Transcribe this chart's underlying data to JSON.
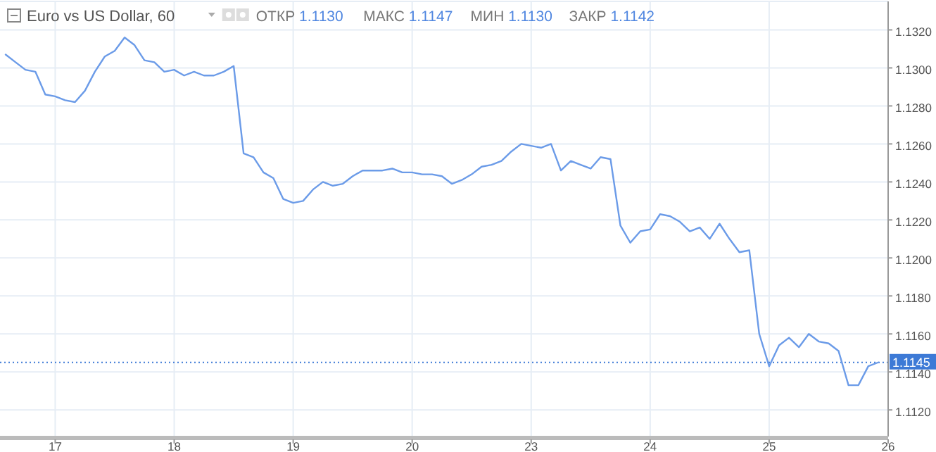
{
  "chart_data": {
    "type": "line",
    "title": "Euro vs US Dollar, 60",
    "annotations": [
      "ОТКР 1.1130",
      "МАКС 1.1147",
      "МИН 1.1130",
      "ЗАКР 1.1142"
    ],
    "categories": [
      null,
      null,
      null,
      null,
      null,
      "17",
      null,
      null,
      null,
      null,
      null,
      null,
      null,
      null,
      null,
      null,
      null,
      "18",
      null,
      null,
      null,
      null,
      null,
      null,
      null,
      null,
      null,
      null,
      null,
      "19",
      null,
      null,
      null,
      null,
      null,
      null,
      null,
      null,
      null,
      null,
      null,
      "20",
      null,
      null,
      null,
      null,
      null,
      null,
      null,
      null,
      null,
      null,
      null,
      "23",
      null,
      null,
      null,
      null,
      null,
      null,
      null,
      null,
      null,
      null,
      null,
      "24",
      null,
      null,
      null,
      null,
      null,
      null,
      null,
      null,
      null,
      null,
      null,
      "25",
      null,
      null,
      null,
      null,
      null,
      null,
      null,
      null,
      null,
      null,
      null,
      "26"
    ],
    "series": [
      {
        "color": "#6b9be8",
        "values": [
          1.1307,
          1.1303,
          1.1299,
          1.1298,
          1.1286,
          1.1285,
          1.1283,
          1.1282,
          1.1288,
          1.1298,
          1.1306,
          1.1309,
          1.1316,
          1.1312,
          1.1304,
          1.1303,
          1.1298,
          1.1299,
          1.1296,
          1.1298,
          1.1296,
          1.1296,
          1.1298,
          1.1301,
          1.1255,
          1.1253,
          1.1245,
          1.1242,
          1.1231,
          1.1229,
          1.123,
          1.1236,
          1.124,
          1.1238,
          1.1239,
          1.1243,
          1.1246,
          1.1246,
          1.1246,
          1.1247,
          1.1245,
          1.1245,
          1.1244,
          1.1244,
          1.1243,
          1.1239,
          1.1241,
          1.1244,
          1.1248,
          1.1249,
          1.1251,
          1.1256,
          1.126,
          1.1259,
          1.1258,
          1.126,
          1.1246,
          1.1251,
          1.1249,
          1.1247,
          1.1253,
          1.1252,
          1.1217,
          1.1208,
          1.1214,
          1.1215,
          1.1223,
          1.1222,
          1.1219,
          1.1214,
          1.1216,
          1.121,
          1.1218,
          1.121,
          1.1203,
          1.1204,
          1.116,
          1.1143,
          1.1154,
          1.1158,
          1.1153,
          1.116,
          1.1156,
          1.1155,
          1.1151,
          1.1133,
          1.1133,
          1.1143,
          1.1145,
          null
        ]
      }
    ],
    "ylim": [
      1.1106,
      1.1335
    ],
    "yticks": [
      {
        "value": 1.112,
        "label": "1.1120"
      },
      {
        "value": 1.114,
        "label": "1.1140"
      },
      {
        "value": 1.116,
        "label": "1.1160"
      },
      {
        "value": 1.118,
        "label": "1.1180"
      },
      {
        "value": 1.12,
        "label": "1.1200"
      },
      {
        "value": 1.122,
        "label": "1.1220"
      },
      {
        "value": 1.124,
        "label": "1.1240"
      },
      {
        "value": 1.126,
        "label": "1.1260"
      },
      {
        "value": 1.128,
        "label": "1.1280"
      },
      {
        "value": 1.13,
        "label": "1.1300"
      },
      {
        "value": 1.132,
        "label": "1.1320"
      }
    ],
    "ref_lines": [
      {
        "axis": "y",
        "value": 1.1145,
        "label": "1.1145",
        "color": "#3d7ad6",
        "line_style": "dotted"
      }
    ],
    "grid": true
  }
}
